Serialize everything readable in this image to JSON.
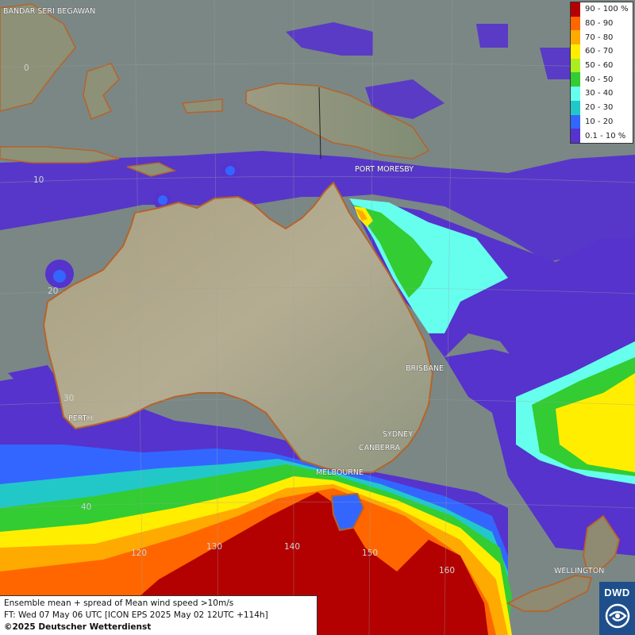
{
  "map": {
    "cities": [
      {
        "name": "BANDAR SERI BEGAWAN"
      },
      {
        "name": "PORT MORESBY"
      },
      {
        "name": "PERTH"
      },
      {
        "name": "BRISBANE"
      },
      {
        "name": "SYDNEY"
      },
      {
        "name": "CANBERRA"
      },
      {
        "name": "MELBOURNE"
      },
      {
        "name": "WELLINGTON"
      }
    ],
    "grid_labels": {
      "latitudes": [
        "0",
        "10",
        "20",
        "30",
        "40"
      ],
      "longitudes": [
        "120",
        "130",
        "140",
        "150",
        "160"
      ]
    }
  },
  "legend": {
    "title": "",
    "classes": [
      {
        "label": "90 - 100 %",
        "color": "#b30000"
      },
      {
        "label": "80 - 90",
        "color": "#ff6600"
      },
      {
        "label": "70 - 80",
        "color": "#ffaa00"
      },
      {
        "label": "60 - 70",
        "color": "#ffee00"
      },
      {
        "label": "50 - 60",
        "color": "#aaee22"
      },
      {
        "label": "40 - 50",
        "color": "#33cc33"
      },
      {
        "label": "30 - 40",
        "color": "#66ffee"
      },
      {
        "label": "20 - 30",
        "color": "#22c8c8"
      },
      {
        "label": "10 - 20",
        "color": "#3366ff"
      },
      {
        "label": "0.1 - 10 %",
        "color": "#5533cc"
      }
    ]
  },
  "footer": {
    "line1": "Ensemble mean + spread of Mean wind speed >10m/s",
    "line2": "FT: Wed 07 May 06 UTC [ICON EPS 2025 May 02 12UTC +114h]",
    "line3": "©2025 Deutscher Wetterdienst"
  },
  "logo": {
    "text": "DWD"
  }
}
